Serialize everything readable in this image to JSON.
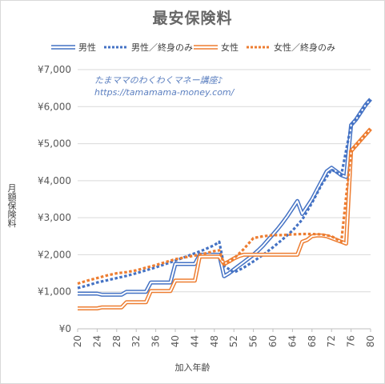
{
  "chart_data": {
    "type": "line",
    "title": "最安保険料",
    "xlabel": "加入年齢",
    "ylabel": "月額保険料",
    "xlim": [
      20,
      80
    ],
    "ylim": [
      0,
      7000
    ],
    "x_ticks": [
      20,
      24,
      28,
      32,
      36,
      40,
      44,
      48,
      52,
      56,
      60,
      64,
      68,
      72,
      76,
      80
    ],
    "x_tick_labels": [
      "20",
      "24",
      "28",
      "32",
      "36",
      "40",
      "44",
      "48",
      "52",
      "56",
      "60",
      "64",
      "68",
      "72",
      "76",
      "80"
    ],
    "y_ticks": [
      0,
      1000,
      2000,
      3000,
      4000,
      5000,
      6000,
      7000
    ],
    "y_tick_labels": [
      "¥0",
      "¥1,000",
      "¥2,000",
      "¥3,000",
      "¥4,000",
      "¥5,000",
      "¥6,000",
      "¥7,000"
    ],
    "grid": "horizontal",
    "legend_position": "top",
    "annotation": {
      "line1": "たまママのわくわくマネー講座♪",
      "line2": "https://tamamama-money.com/"
    },
    "series": [
      {
        "name": "男性",
        "color": "#4472c4",
        "style": "double",
        "x": [
          20,
          21,
          22,
          23,
          24,
          25,
          26,
          27,
          28,
          29,
          30,
          31,
          32,
          33,
          34,
          35,
          36,
          37,
          38,
          39,
          40,
          41,
          42,
          43,
          44,
          45,
          46,
          47,
          48,
          49,
          50,
          51,
          52,
          53,
          54,
          55,
          56,
          57,
          58,
          59,
          60,
          61,
          62,
          63,
          64,
          65,
          66,
          67,
          68,
          69,
          70,
          71,
          72,
          73,
          74,
          75,
          76,
          77,
          78,
          79,
          80
        ],
        "values": [
          950,
          950,
          950,
          950,
          950,
          920,
          920,
          920,
          920,
          920,
          1000,
          1000,
          1000,
          1000,
          1000,
          1250,
          1250,
          1250,
          1250,
          1250,
          1750,
          1750,
          1750,
          1750,
          1750,
          2000,
          2000,
          2000,
          2000,
          2000,
          1420,
          1500,
          1600,
          1700,
          1800,
          1900,
          2000,
          2120,
          2250,
          2400,
          2550,
          2700,
          2870,
          3050,
          3250,
          3450,
          3100,
          3300,
          3500,
          3750,
          4000,
          4250,
          4350,
          4250,
          4150,
          4100,
          5500,
          5650,
          5850,
          6050,
          6200
        ]
      },
      {
        "name": "男性／終身のみ",
        "color": "#4472c4",
        "style": "dotted",
        "x": [
          20,
          22,
          24,
          26,
          28,
          30,
          32,
          34,
          36,
          38,
          40,
          42,
          44,
          46,
          48,
          49,
          50,
          52,
          54,
          56,
          58,
          60,
          62,
          64,
          66,
          68,
          70,
          72,
          74,
          76,
          78,
          80
        ],
        "values": [
          1100,
          1170,
          1250,
          1310,
          1370,
          1430,
          1500,
          1580,
          1660,
          1750,
          1840,
          1940,
          2040,
          2140,
          2260,
          2350,
          1700,
          1520,
          1650,
          1820,
          2000,
          2200,
          2420,
          2650,
          2950,
          3400,
          3900,
          4300,
          4150,
          5500,
          5850,
          6200
        ]
      },
      {
        "name": "女性",
        "color": "#ed7d31",
        "style": "double",
        "x": [
          20,
          21,
          22,
          23,
          24,
          25,
          26,
          27,
          28,
          29,
          30,
          31,
          32,
          33,
          34,
          35,
          36,
          37,
          38,
          39,
          40,
          41,
          42,
          43,
          44,
          45,
          46,
          47,
          48,
          49,
          50,
          51,
          52,
          53,
          54,
          55,
          56,
          57,
          58,
          59,
          60,
          61,
          62,
          63,
          64,
          65,
          66,
          67,
          68,
          69,
          70,
          71,
          72,
          73,
          74,
          75,
          76,
          77,
          78,
          79,
          80
        ],
        "values": [
          550,
          550,
          550,
          550,
          550,
          580,
          580,
          580,
          580,
          580,
          720,
          720,
          720,
          720,
          720,
          1020,
          1020,
          1020,
          1020,
          1020,
          1300,
          1300,
          1300,
          1300,
          1300,
          1950,
          1950,
          1950,
          1950,
          1950,
          1750,
          1820,
          1900,
          1960,
          2000,
          2000,
          2000,
          2000,
          2000,
          2000,
          2000,
          2000,
          2000,
          2000,
          2000,
          2000,
          2350,
          2400,
          2500,
          2520,
          2520,
          2500,
          2450,
          2400,
          2350,
          2300,
          4800,
          4950,
          5100,
          5250,
          5400
        ]
      },
      {
        "name": "女性／終身のみ",
        "color": "#ed7d31",
        "style": "dotted",
        "x": [
          20,
          22,
          24,
          26,
          28,
          30,
          32,
          34,
          36,
          38,
          40,
          42,
          44,
          46,
          48,
          49,
          50,
          52,
          54,
          56,
          58,
          60,
          62,
          64,
          66,
          68,
          70,
          72,
          74,
          76,
          78,
          80
        ],
        "values": [
          1220,
          1300,
          1370,
          1440,
          1500,
          1530,
          1580,
          1650,
          1720,
          1800,
          1880,
          1930,
          1980,
          2030,
          2100,
          2120,
          1750,
          1900,
          2150,
          2450,
          2500,
          2530,
          2530,
          2550,
          2560,
          2560,
          2550,
          2500,
          2350,
          4800,
          5100,
          5400
        ]
      }
    ]
  }
}
